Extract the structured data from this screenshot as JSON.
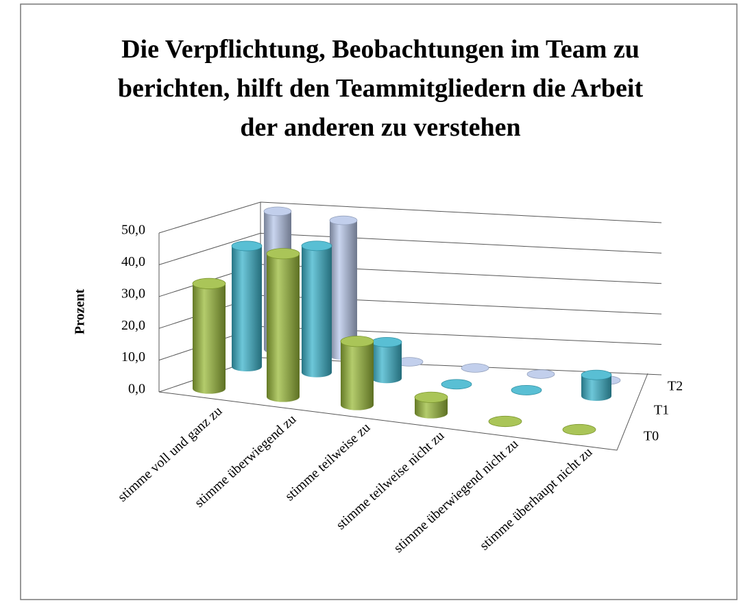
{
  "chart_data": {
    "type": "bar3d",
    "title": "Die Verpflichtung, Beobachtungen im Team zu berichten, hilft den Teammitgliedern die Arbeit der anderen zu verstehen",
    "y_label": "Prozent",
    "categories": [
      "stimme voll und ganz zu",
      "stimme überwiegend zu",
      "stimme teilweise zu",
      "stimme teilweise nicht zu",
      "stimme überwiegend nicht zu",
      "stimme überhaupt nicht zu"
    ],
    "series": [
      {
        "name": "T0",
        "color": "#9bbb3b",
        "values": [
          33,
          45,
          20,
          5,
          0,
          0
        ]
      },
      {
        "name": "T1",
        "color": "#3cb4cc",
        "values": [
          40,
          42,
          12,
          0,
          0,
          7
        ]
      },
      {
        "name": "T2",
        "color": "#b7c7e9",
        "values": [
          48,
          47,
          0,
          0,
          0,
          0
        ]
      }
    ],
    "ylim": [
      0,
      50
    ],
    "yticks": [
      {
        "value": 0,
        "label": "0,0"
      },
      {
        "value": 10,
        "label": "10,0"
      },
      {
        "value": 20,
        "label": "20,0"
      },
      {
        "value": 30,
        "label": "30,0"
      },
      {
        "value": 40,
        "label": "40,0"
      },
      {
        "value": 50,
        "label": "50,0"
      }
    ],
    "grid": true
  }
}
